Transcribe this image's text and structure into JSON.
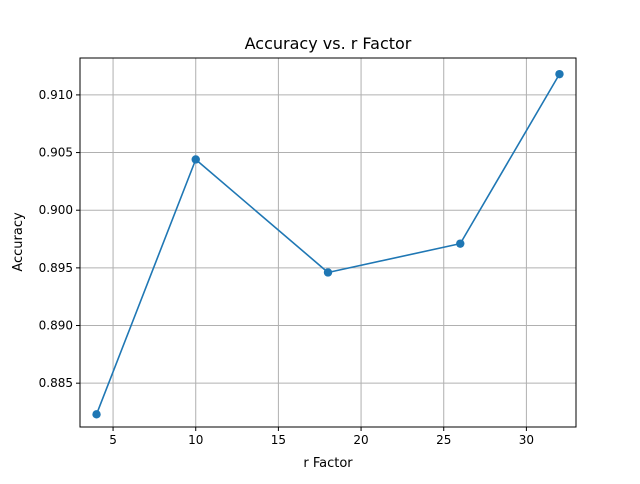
{
  "chart_data": {
    "type": "line",
    "title": "Accuracy vs. r Factor",
    "xlabel": "r Factor",
    "ylabel": "Accuracy",
    "xlim": [
      3,
      33
    ],
    "ylim": [
      0.8812,
      0.9132
    ],
    "xticks": [
      5,
      10,
      15,
      20,
      25,
      30
    ],
    "yticks": [
      0.885,
      0.89,
      0.895,
      0.9,
      0.905,
      0.91
    ],
    "ytick_labels": [
      "0.885",
      "0.890",
      "0.895",
      "0.900",
      "0.905",
      "0.910"
    ],
    "grid": true,
    "marker": "circle",
    "series": [
      {
        "color": "#1f77b4",
        "x": [
          4,
          10,
          18,
          26,
          32
        ],
        "y": [
          0.8823,
          0.9044,
          0.8946,
          0.8971,
          0.9118
        ]
      }
    ]
  }
}
